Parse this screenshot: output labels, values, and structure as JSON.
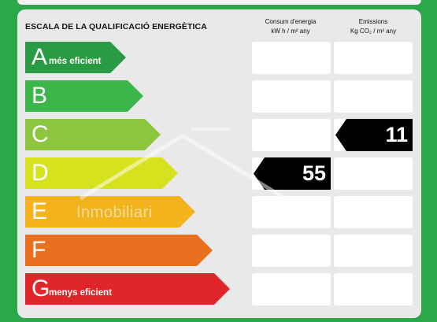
{
  "header": {
    "title": "ESCALA DE LA QUALIFICACIÓ ENERGÈTICA",
    "consum_line1": "Consum d'energia",
    "consum_line2": "kW h / m² any",
    "emissions_line1": "Emissions",
    "emissions_line2": "Kg CO₂ / m² any"
  },
  "ratings": [
    {
      "letter": "A",
      "label": "més eficient",
      "color": "#2a9a44"
    },
    {
      "letter": "B",
      "label": "",
      "color": "#3cb54a"
    },
    {
      "letter": "C",
      "label": "",
      "color": "#8cc63f"
    },
    {
      "letter": "D",
      "label": "",
      "color": "#d7e21e"
    },
    {
      "letter": "E",
      "label": "",
      "color": "#f2b31d"
    },
    {
      "letter": "F",
      "label": "",
      "color": "#e8701f"
    },
    {
      "letter": "G",
      "label": "menys eficient",
      "color": "#e0262b"
    }
  ],
  "consum": {
    "rating": "D",
    "value": "55"
  },
  "emissions": {
    "rating": "C",
    "value": "11"
  },
  "watermark": {
    "text": "Inmobiliari"
  }
}
